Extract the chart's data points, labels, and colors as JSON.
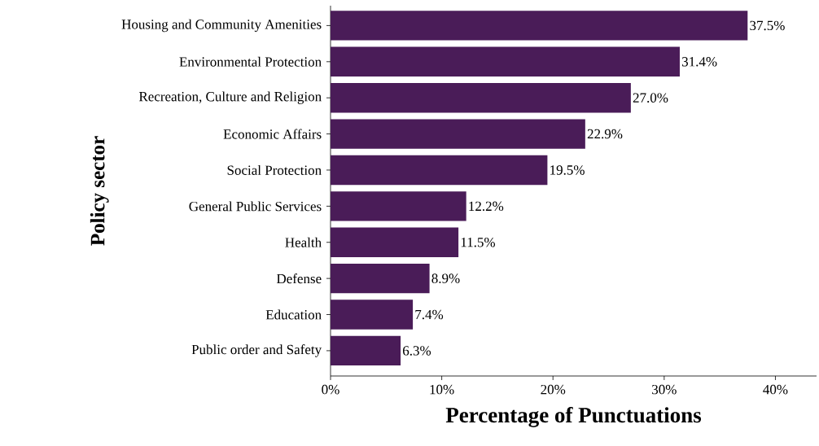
{
  "chart_data": {
    "type": "bar",
    "orientation": "horizontal",
    "xlabel": "Percentage of Punctuations",
    "ylabel": "Policy sector",
    "categories": [
      "Housing and Community Amenities",
      "Environmental Protection",
      "Recreation, Culture and Religion",
      "Economic Affairs",
      "Social Protection",
      "General Public Services",
      "Health",
      "Defense",
      "Education",
      "Public order and Safety"
    ],
    "values": [
      37.5,
      31.4,
      27.0,
      22.9,
      19.5,
      12.2,
      11.5,
      8.9,
      7.4,
      6.3
    ],
    "value_labels": [
      "37.5%",
      "31.4%",
      "27.0%",
      "22.9%",
      "19.5%",
      "12.2%",
      "11.5%",
      "8.9%",
      "7.4%",
      "6.3%"
    ],
    "color": "#4a1c58",
    "xlim": [
      0,
      43.7
    ],
    "xticks": [
      {
        "value": 0,
        "label": "0%"
      },
      {
        "value": 10,
        "label": "10%"
      },
      {
        "value": 20,
        "label": "20%"
      },
      {
        "value": 30,
        "label": "30%"
      },
      {
        "value": 40,
        "label": "40%"
      }
    ]
  }
}
